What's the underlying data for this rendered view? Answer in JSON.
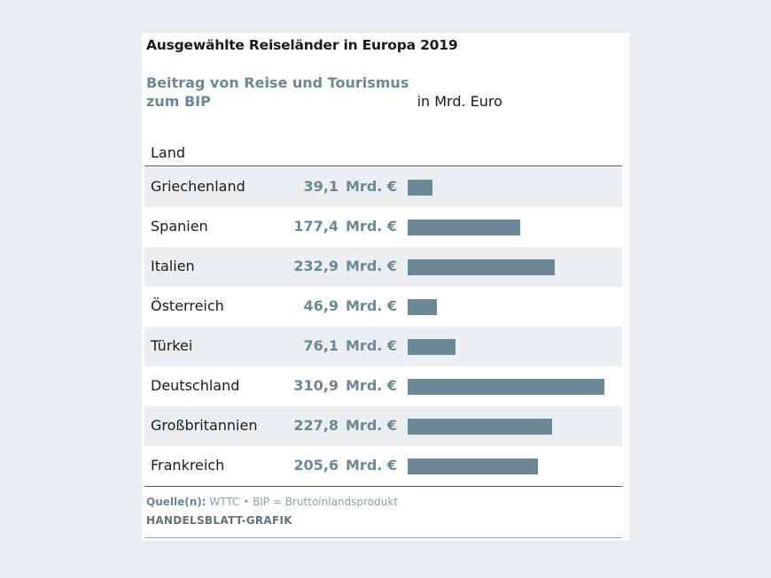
{
  "chart_data": {
    "type": "bar",
    "orientation": "horizontal",
    "title": "Ausgewählte Reiseländer in Europa 2019",
    "subtitle_highlight": "Beitrag von Reise und Tourismus zum BIP",
    "subtitle_rest": "in Mrd. Euro",
    "column_header": "Land",
    "unit_label": "Mrd. €",
    "categories": [
      "Griechenland",
      "Spanien",
      "Italien",
      "Österreich",
      "Türkei",
      "Deutschland",
      "Großbritannien",
      "Frankreich"
    ],
    "values": [
      39.1,
      177.4,
      232.9,
      46.9,
      76.1,
      310.9,
      227.8,
      205.6
    ],
    "value_labels": [
      "39,1",
      "177,4",
      "232,9",
      "46,9",
      "76,1",
      "310,9",
      "227,8",
      "205,6"
    ],
    "bar_color": "#6c8795",
    "source_label": "Quelle(n):",
    "source_text": "WTTC • BIP = Bruttoinlandsprodukt",
    "credit": "HANDELSBLATT-GRAFIK"
  }
}
